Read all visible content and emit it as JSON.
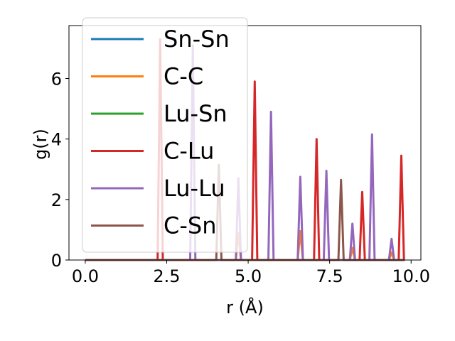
{
  "chart_data": {
    "type": "line",
    "title": "",
    "xlabel": "r (Å)",
    "ylabel": "g(r)",
    "xlim": [
      -0.5,
      10.3
    ],
    "ylim": [
      0,
      7.75
    ],
    "xticks": [
      0.0,
      2.5,
      5.0,
      7.5,
      10.0
    ],
    "xtick_labels": [
      "0.0",
      "2.5",
      "5.0",
      "7.5",
      "10.0"
    ],
    "yticks": [
      0,
      2,
      4,
      6
    ],
    "ytick_labels": [
      "0",
      "2",
      "4",
      "6"
    ],
    "legend_position": "top-left",
    "grid": false,
    "series": [
      {
        "name": "Sn-Sn",
        "color": "#1f77b4",
        "peaks": []
      },
      {
        "name": "C-C",
        "color": "#ff7f0e",
        "peaks": [
          [
            4.7,
            0.9
          ],
          [
            6.6,
            0.95
          ],
          [
            8.2,
            0.4
          ],
          [
            9.4,
            0.25
          ]
        ]
      },
      {
        "name": "Lu-Sn",
        "color": "#2ca02c",
        "peaks": []
      },
      {
        "name": "C-Lu",
        "color": "#d62728",
        "peaks": [
          [
            2.3,
            7.3
          ],
          [
            5.2,
            5.9
          ],
          [
            7.1,
            4.0
          ],
          [
            8.5,
            2.25
          ],
          [
            9.7,
            3.45
          ]
        ]
      },
      {
        "name": "Lu-Lu",
        "color": "#9467bd",
        "peaks": [
          [
            3.3,
            7.1
          ],
          [
            4.7,
            2.7
          ],
          [
            5.7,
            4.9
          ],
          [
            6.6,
            2.75
          ],
          [
            7.4,
            2.95
          ],
          [
            8.2,
            1.2
          ],
          [
            8.8,
            4.15
          ],
          [
            9.4,
            0.7
          ]
        ]
      },
      {
        "name": "C-Sn",
        "color": "#8c564b",
        "peaks": [
          [
            4.1,
            3.15
          ],
          [
            7.85,
            2.65
          ]
        ]
      }
    ]
  }
}
